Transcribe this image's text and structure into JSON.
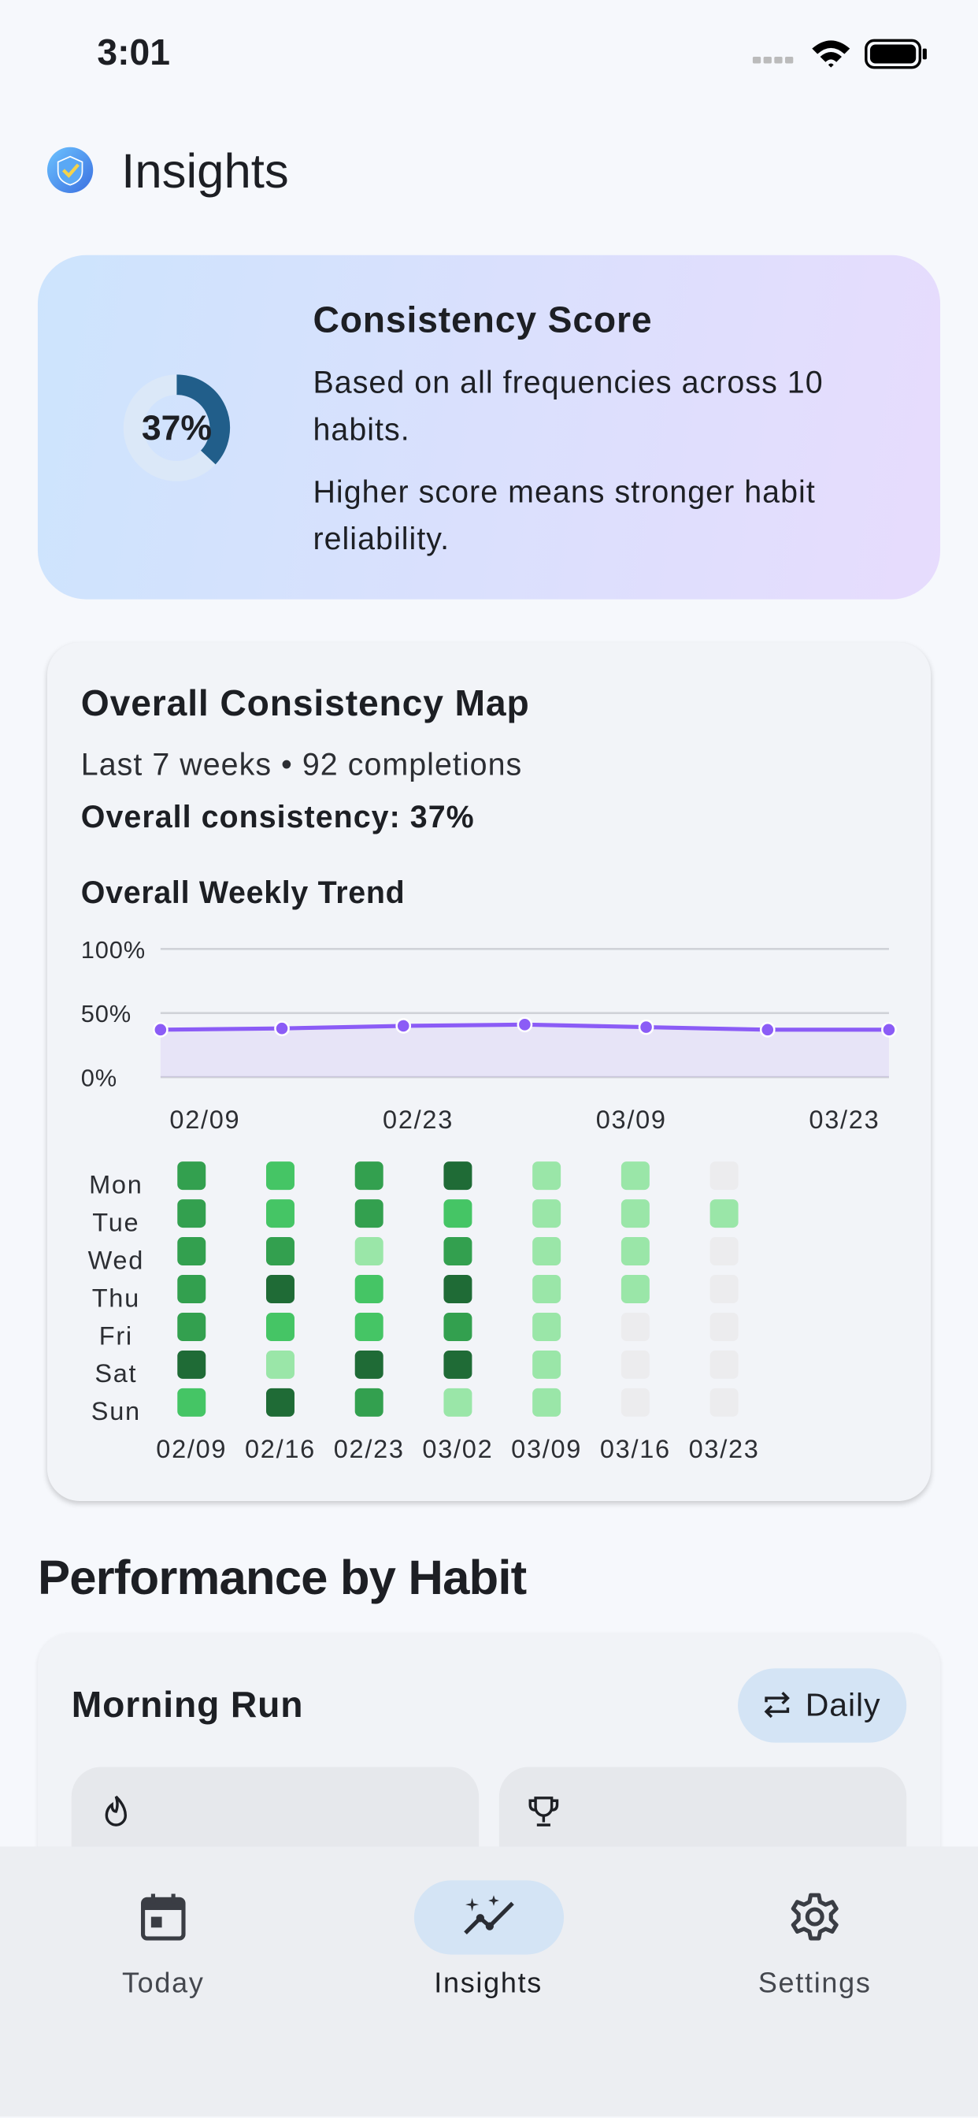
{
  "status_bar": {
    "time": "3:01"
  },
  "header": {
    "title": "Insights"
  },
  "score_card": {
    "title": "Consistency Score",
    "score": 37,
    "score_label": "37%",
    "lines": [
      "Based on all frequencies across 10 habits.",
      "Higher score means stronger habit reliability."
    ]
  },
  "map_card": {
    "title": "Overall Consistency Map",
    "summary": "Last 7 weeks • 92 completions",
    "overall": "Overall consistency: 37%",
    "trend": {
      "type": "line",
      "title": "Overall Weekly Trend",
      "categories": [
        "02/09",
        null,
        "02/23",
        null,
        "03/09",
        null,
        "03/23"
      ],
      "values": [
        37,
        38,
        40,
        41,
        39,
        37,
        37
      ],
      "color": "#8b5cf6",
      "ylim": [
        0,
        100
      ],
      "yticks": [
        {
          "value": 0,
          "label": "0%"
        },
        {
          "value": 50,
          "label": "50%"
        },
        {
          "value": 100,
          "label": "100%"
        }
      ],
      "grid": true
    },
    "heatmap": {
      "days": [
        "Mon",
        "Tue",
        "Wed",
        "Thu",
        "Fri",
        "Sat",
        "Sun"
      ],
      "weeks": [
        "02/09",
        "02/16",
        "02/23",
        "03/02",
        "03/09",
        "03/16",
        "03/23"
      ],
      "levels": [
        [
          3,
          3,
          3,
          3,
          3,
          4,
          2
        ],
        [
          2,
          2,
          3,
          4,
          2,
          1,
          4
        ],
        [
          3,
          3,
          1,
          2,
          2,
          4,
          3
        ],
        [
          4,
          2,
          3,
          4,
          3,
          4,
          1
        ],
        [
          1,
          1,
          1,
          1,
          1,
          1,
          1
        ],
        [
          1,
          1,
          1,
          1,
          0,
          0,
          0
        ],
        [
          0,
          1,
          0,
          0,
          0,
          0,
          0
        ]
      ],
      "colors": [
        "#ececee",
        "#9ae6a8",
        "#45c565",
        "#33a04f",
        "#1f6b36"
      ]
    }
  },
  "performance": {
    "title": "Performance by Habit",
    "habit": "Morning Run",
    "frequency": "Daily"
  },
  "nav": [
    "Today",
    "Insights",
    "Settings"
  ]
}
